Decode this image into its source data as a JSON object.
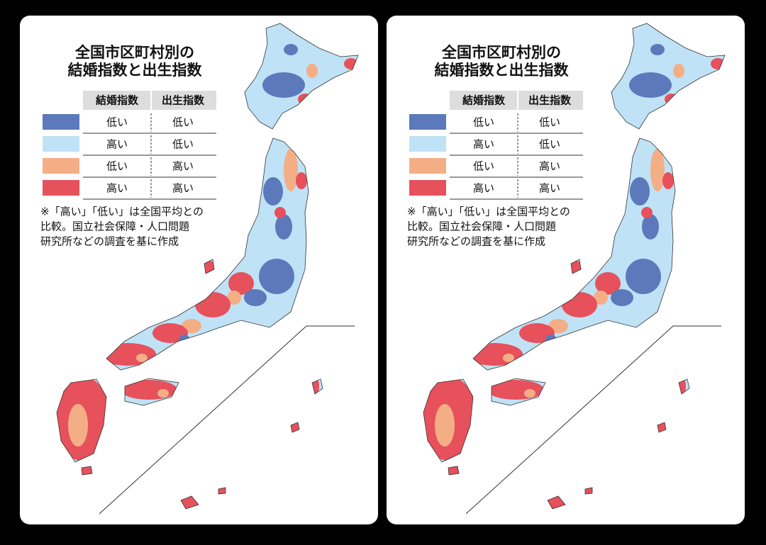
{
  "map": {
    "title": [
      "全国市区町村別の",
      "結婚指数と出生指数"
    ],
    "legend": {
      "headers": [
        "結婚指数",
        "出生指数"
      ],
      "rows": [
        {
          "color": "#5b79bb",
          "marriage": "低い",
          "birth": "低い"
        },
        {
          "color": "#bfe2f6",
          "marriage": "高い",
          "birth": "低い"
        },
        {
          "color": "#f4ae86",
          "marriage": "低い",
          "birth": "高い"
        },
        {
          "color": "#e6515c",
          "marriage": "高い",
          "birth": "高い"
        }
      ]
    },
    "note": [
      "※「高い」「低い」は全国平均との",
      "比較。国立社会保障・人口問題",
      "研究所などの調査を基に作成"
    ]
  }
}
